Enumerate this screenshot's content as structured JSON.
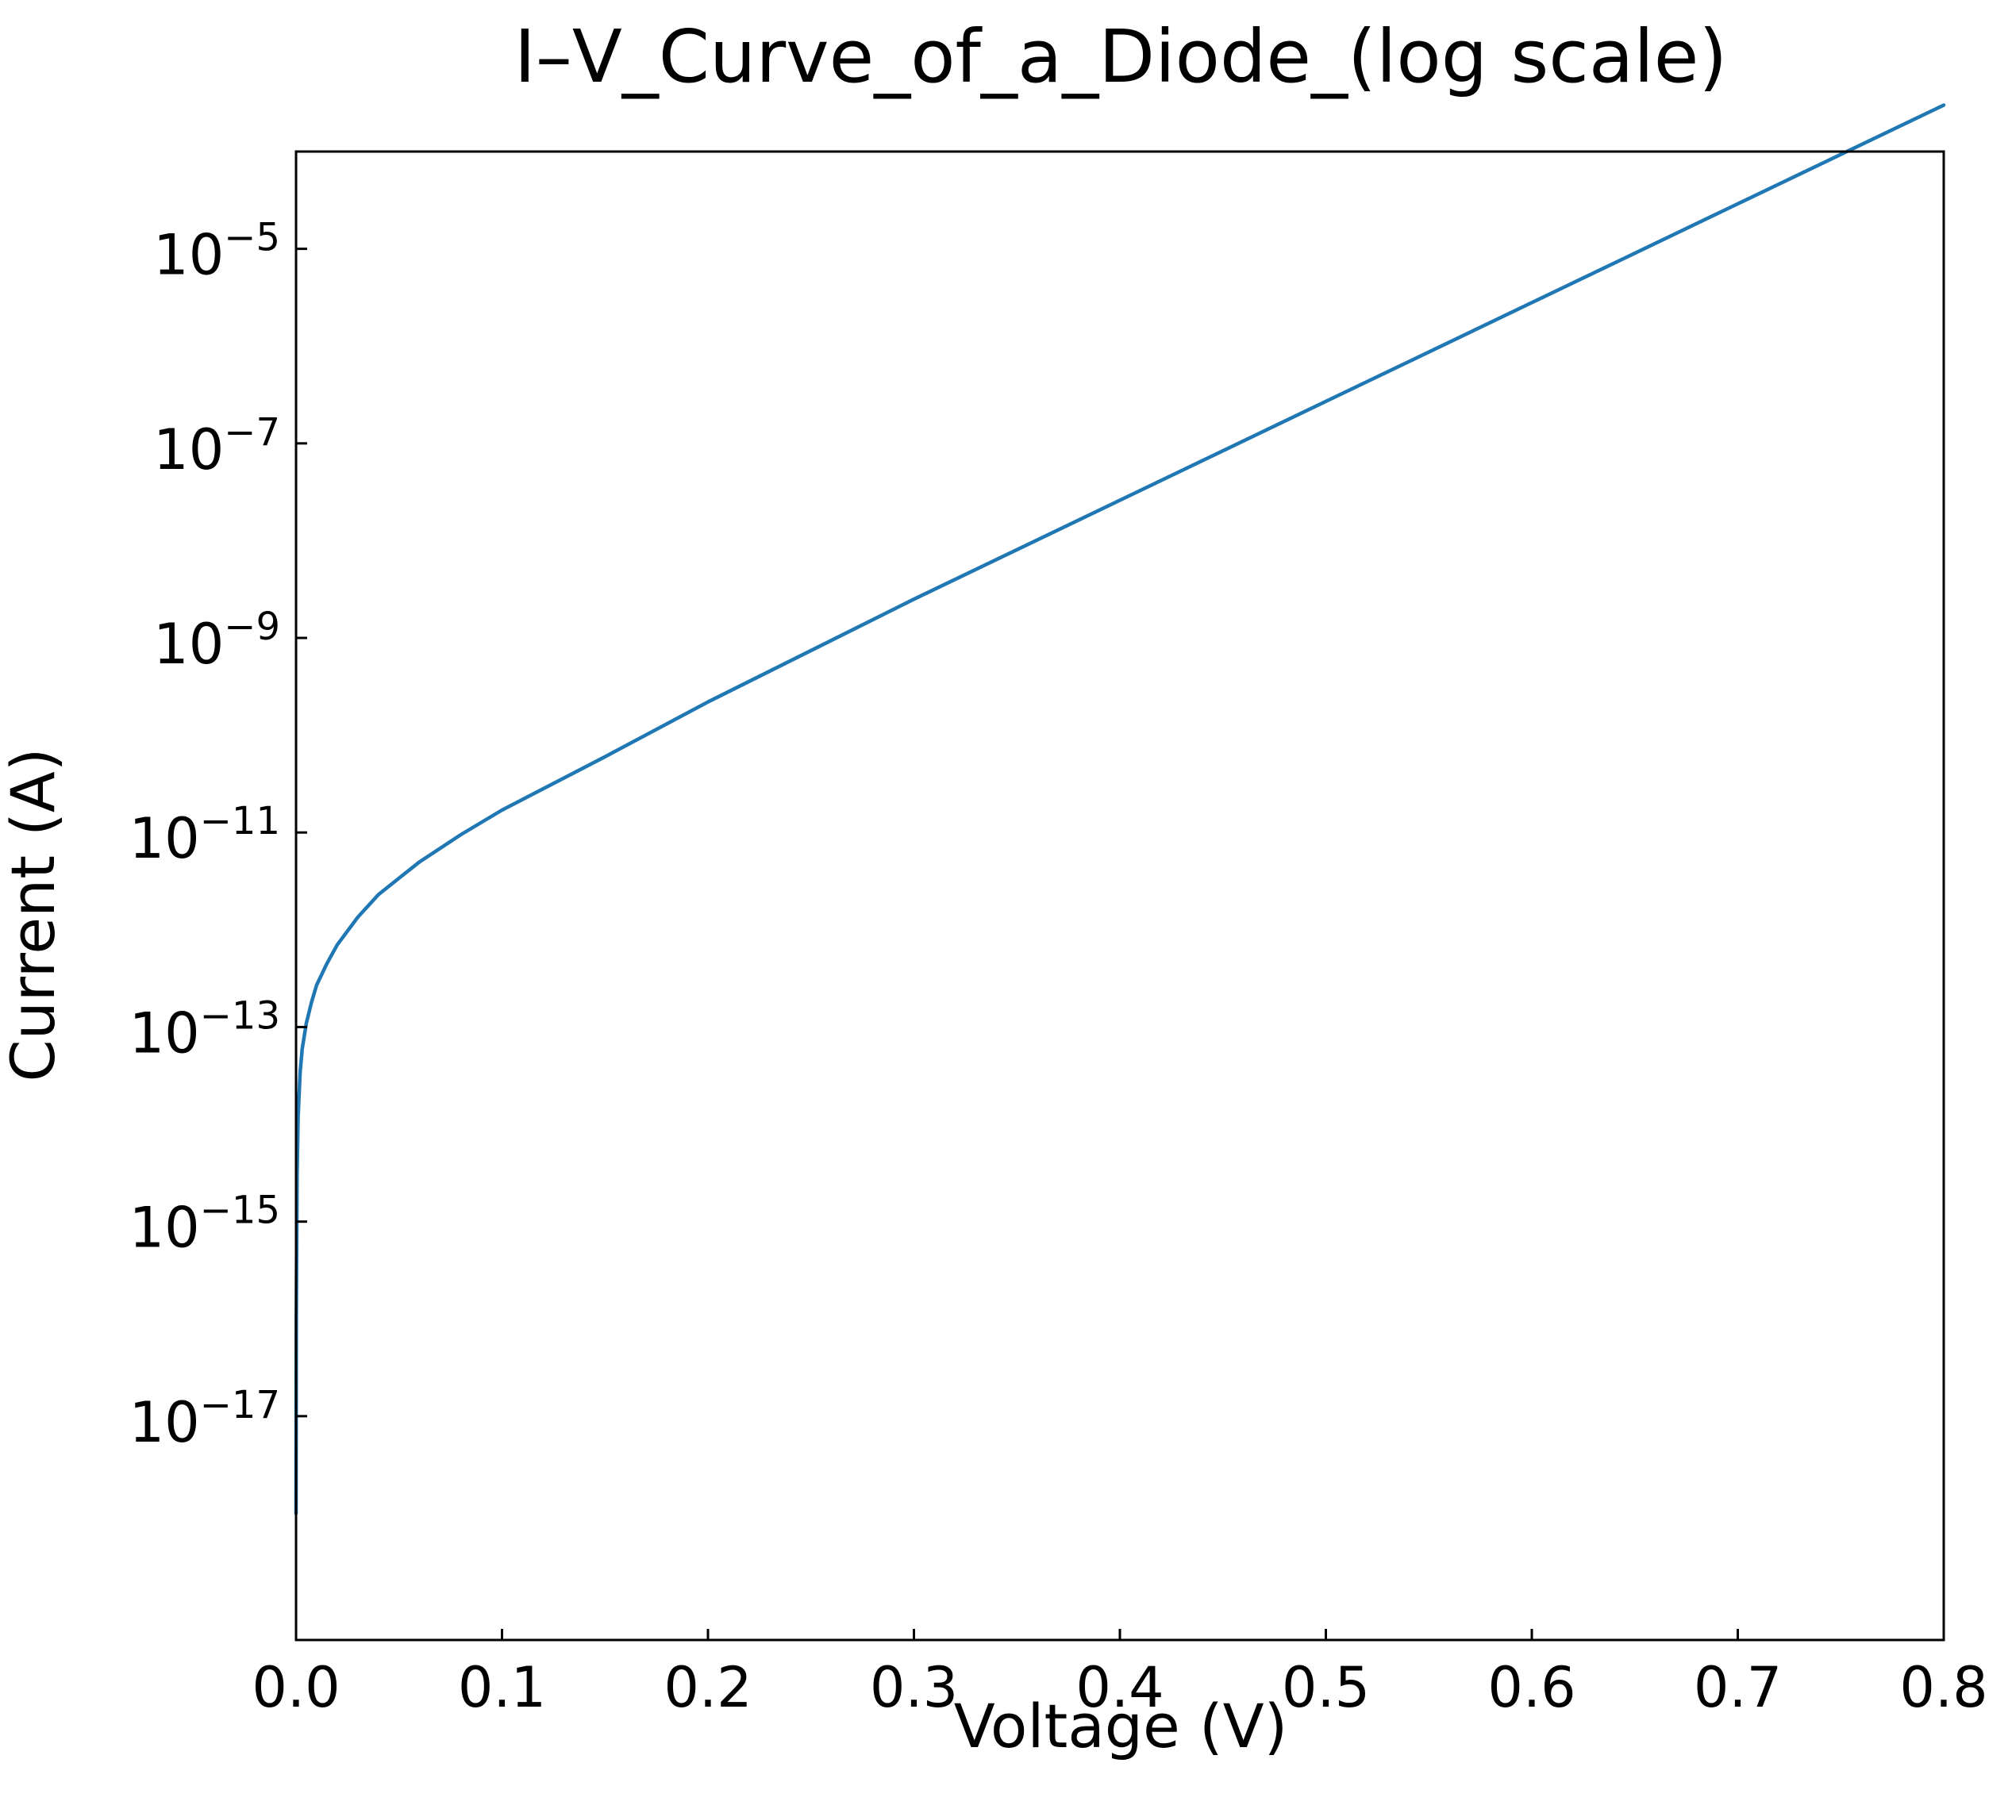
{
  "chart_data": {
    "type": "line",
    "title": "I–V_Curve_of_a_Diode_(log scale)",
    "xlabel": "Voltage (V)",
    "ylabel": "Current (A)",
    "xscale": "linear",
    "yscale": "log",
    "xlim": [
      0.0,
      0.8
    ],
    "ylim": [
      5e-20,
      0.0001
    ],
    "grid": false,
    "legend": "none",
    "x_ticks": [
      {
        "value": 0.0,
        "label": "0.0"
      },
      {
        "value": 0.1,
        "label": "0.1"
      },
      {
        "value": 0.2,
        "label": "0.2"
      },
      {
        "value": 0.3,
        "label": "0.3"
      },
      {
        "value": 0.4,
        "label": "0.4"
      },
      {
        "value": 0.5,
        "label": "0.5"
      },
      {
        "value": 0.6,
        "label": "0.6"
      },
      {
        "value": 0.7,
        "label": "0.7"
      },
      {
        "value": 0.8,
        "label": "0.8"
      }
    ],
    "y_ticks": [
      {
        "value": 1e-17,
        "base": "10",
        "exponent": "−17"
      },
      {
        "value": 1e-15,
        "base": "10",
        "exponent": "−15"
      },
      {
        "value": 1e-13,
        "base": "10",
        "exponent": "−13"
      },
      {
        "value": 1e-11,
        "base": "10",
        "exponent": "−11"
      },
      {
        "value": 1e-09,
        "base": "10",
        "exponent": "−9"
      },
      {
        "value": 1e-07,
        "base": "10",
        "exponent": "−7"
      },
      {
        "value": 1e-05,
        "base": "10",
        "exponent": "−5"
      }
    ],
    "series": [
      {
        "color": "#1f77b4",
        "x": [
          0.0,
          0.0001,
          0.0005,
          0.001,
          0.002,
          0.003,
          0.005,
          0.0075,
          0.01,
          0.015,
          0.02,
          0.03,
          0.04,
          0.05,
          0.06,
          0.08,
          0.1,
          0.15,
          0.2,
          0.3,
          0.4,
          0.5,
          0.6,
          0.7,
          0.8
        ],
        "y": [
          1e-18,
          1e-16,
          3e-15,
          1.2e-14,
          3.5e-14,
          6e-14,
          1.1e-13,
          1.8e-13,
          2.7e-13,
          4.5e-13,
          7e-13,
          1.35e-12,
          2.3e-12,
          3.4e-12,
          5e-12,
          9.5e-12,
          1.7e-11,
          6e-11,
          2.2e-10,
          2.5e-09,
          2.6e-08,
          2.7e-07,
          2.8e-06,
          2.9e-05,
          0.0003
        ]
      }
    ]
  }
}
